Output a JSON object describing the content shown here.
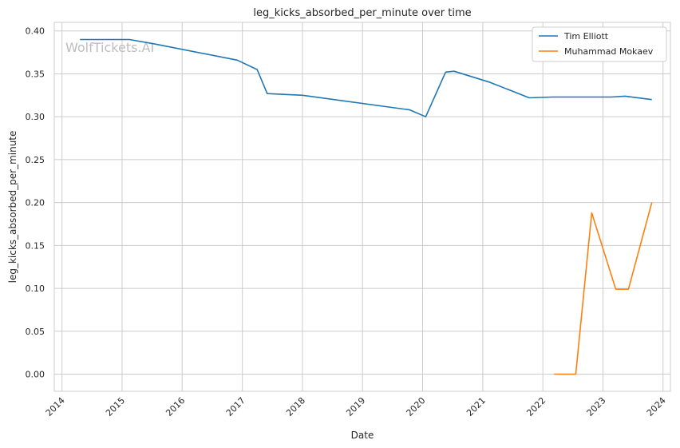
{
  "chart_data": {
    "type": "line",
    "title": "leg_kicks_absorbed_per_minute over time",
    "xlabel": "Date",
    "ylabel": "leg_kicks_absorbed_per_minute",
    "watermark": "WolfTickets.AI",
    "xlim": [
      "2013-11-15",
      "2024-02-15"
    ],
    "ylim": [
      -0.02,
      0.41
    ],
    "x_ticks": [
      "2014-01-01",
      "2015-01-01",
      "2016-01-01",
      "2017-01-01",
      "2018-01-01",
      "2019-01-01",
      "2020-01-01",
      "2021-01-01",
      "2022-01-01",
      "2023-01-01",
      "2024-01-01"
    ],
    "x_tick_labels": [
      "2014",
      "2015",
      "2016",
      "2017",
      "2018",
      "2019",
      "2020",
      "2021",
      "2022",
      "2023",
      "2024"
    ],
    "y_ticks": [
      0.0,
      0.05,
      0.1,
      0.15,
      0.2,
      0.25,
      0.3,
      0.35,
      0.4
    ],
    "y_tick_labels": [
      "0.00",
      "0.05",
      "0.10",
      "0.15",
      "0.20",
      "0.25",
      "0.30",
      "0.35",
      "0.40"
    ],
    "grid": true,
    "legend_position": "top-right",
    "series": [
      {
        "name": "Tim Elliott",
        "color": "#1f77b4",
        "points": [
          [
            "2014-04-20",
            0.39
          ],
          [
            "2015-02-15",
            0.39
          ],
          [
            "2015-07-15",
            0.385
          ],
          [
            "2016-12-01",
            0.366
          ],
          [
            "2017-04-01",
            0.355
          ],
          [
            "2017-06-01",
            0.327
          ],
          [
            "2018-01-01",
            0.325
          ],
          [
            "2019-10-15",
            0.308
          ],
          [
            "2020-01-20",
            0.3
          ],
          [
            "2020-05-20",
            0.352
          ],
          [
            "2020-07-10",
            0.353
          ],
          [
            "2021-02-15",
            0.34
          ],
          [
            "2021-10-10",
            0.322
          ],
          [
            "2022-03-01",
            0.323
          ],
          [
            "2023-02-20",
            0.323
          ],
          [
            "2023-05-15",
            0.324
          ],
          [
            "2023-10-25",
            0.32
          ]
        ]
      },
      {
        "name": "Muhammad Mokaev",
        "color": "#ff7f0e",
        "points": [
          [
            "2022-03-10",
            0.0
          ],
          [
            "2022-07-20",
            0.0
          ],
          [
            "2022-10-25",
            0.188
          ],
          [
            "2023-03-20",
            0.099
          ],
          [
            "2023-06-05",
            0.099
          ],
          [
            "2023-10-25",
            0.2
          ]
        ]
      }
    ]
  }
}
